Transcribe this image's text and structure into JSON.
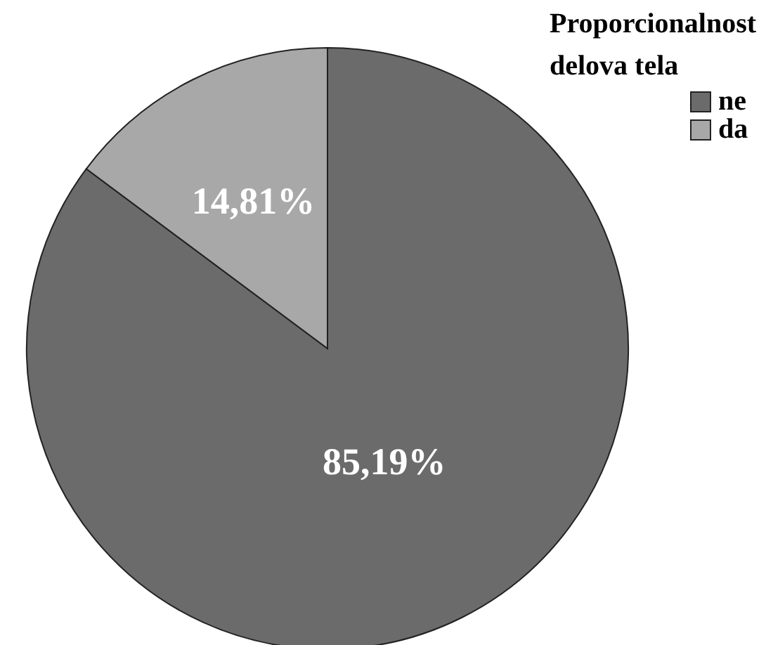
{
  "chart_data": {
    "type": "pie",
    "legend_title": "Proporcionalnost delova tela",
    "categories": [
      "ne",
      "da"
    ],
    "values": [
      85.19,
      14.81
    ],
    "colors": [
      "#6b6b6b",
      "#a8a8a8"
    ],
    "value_labels": [
      "85,19%",
      "14,81%"
    ],
    "legend": "top right"
  }
}
